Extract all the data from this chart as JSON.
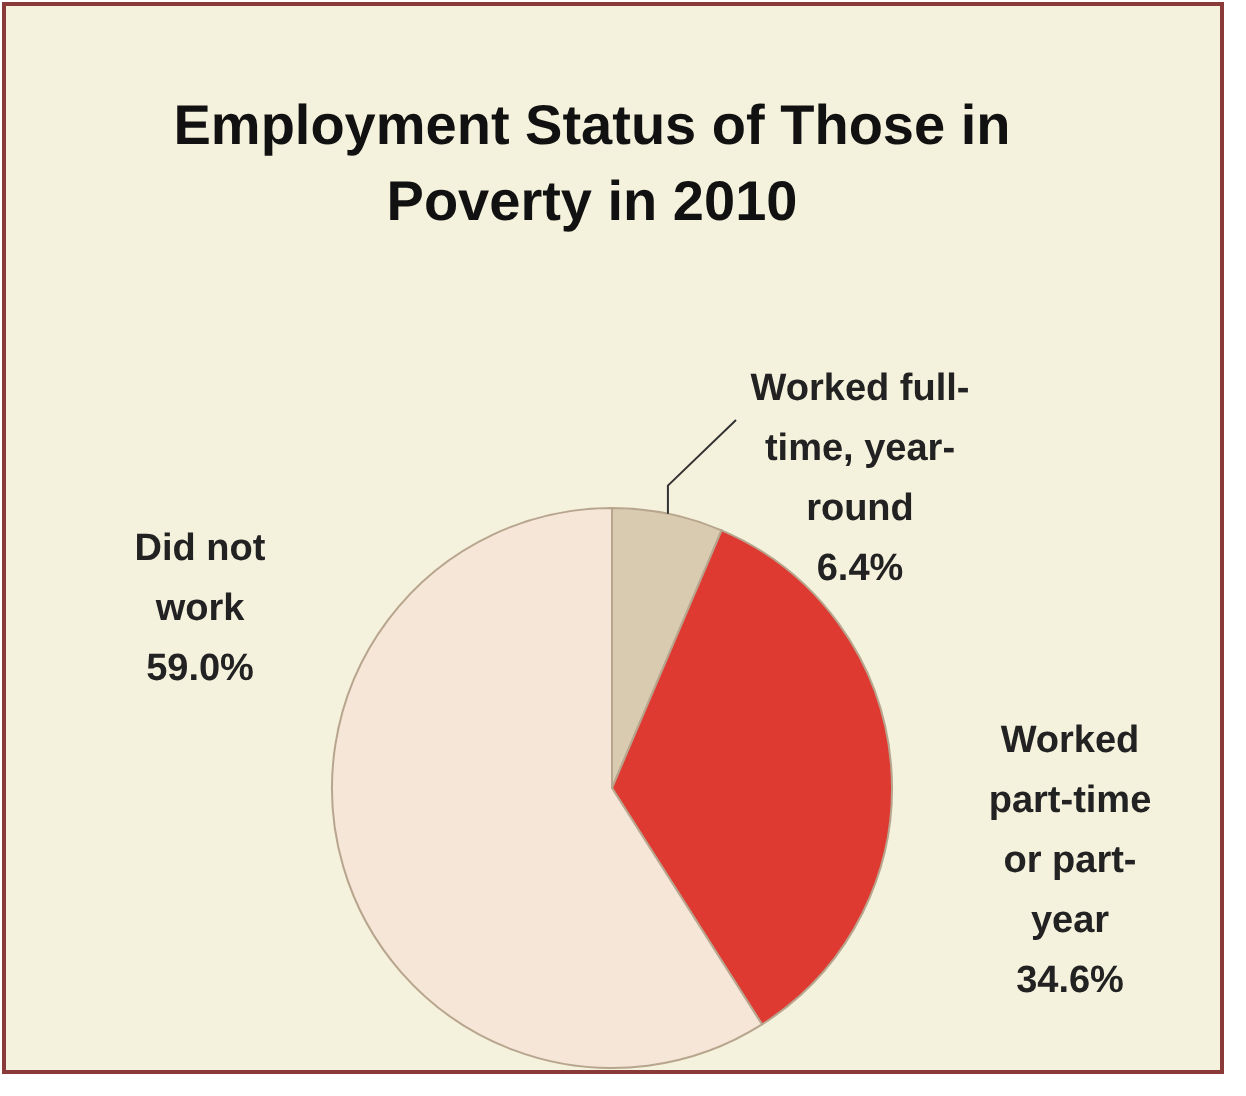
{
  "chart_data": {
    "type": "pie",
    "title": "Employment Status of Those in Poverty in 2010",
    "categories": [
      "Worked full-time, year-round",
      "Worked part-time or part-year",
      "Did not work"
    ],
    "values": [
      6.4,
      34.6,
      59.0
    ],
    "colors": [
      "#d8cbb0",
      "#de3a32",
      "#f6e6d8"
    ],
    "value_labels": [
      "6.4%",
      "34.6%",
      "59.0%"
    ]
  }
}
